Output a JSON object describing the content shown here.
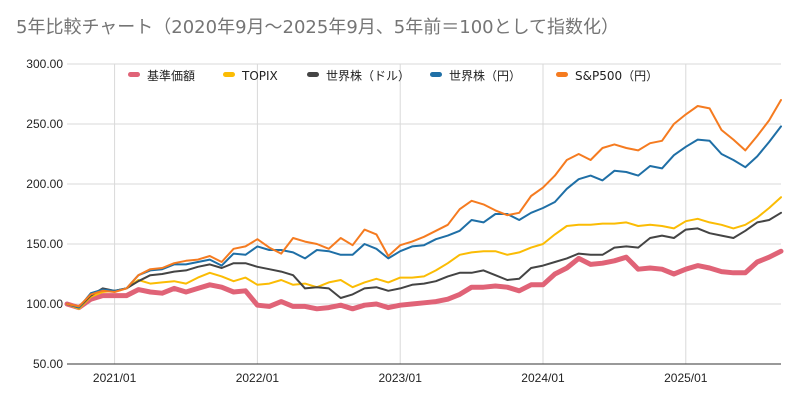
{
  "chart_data": {
    "type": "line",
    "title": "5年比較チャート（2020年9月〜2025年9月、5年前＝100として指数化）",
    "xlabel": "",
    "ylabel": "",
    "ylim": [
      50,
      300
    ],
    "yticks": [
      "50.00",
      "100.00",
      "150.00",
      "200.00",
      "250.00",
      "300.00"
    ],
    "xticks": [
      {
        "label": "2021/01",
        "index": 4
      },
      {
        "label": "2022/01",
        "index": 16
      },
      {
        "label": "2023/01",
        "index": 28
      },
      {
        "label": "2024/01",
        "index": 40
      },
      {
        "label": "2025/01",
        "index": 52
      }
    ],
    "x": [
      "2020/09",
      "2020/10",
      "2020/11",
      "2020/12",
      "2021/01",
      "2021/02",
      "2021/03",
      "2021/04",
      "2021/05",
      "2021/06",
      "2021/07",
      "2021/08",
      "2021/09",
      "2021/10",
      "2021/11",
      "2021/12",
      "2022/01",
      "2022/02",
      "2022/03",
      "2022/04",
      "2022/05",
      "2022/06",
      "2022/07",
      "2022/08",
      "2022/09",
      "2022/10",
      "2022/11",
      "2022/12",
      "2023/01",
      "2023/02",
      "2023/03",
      "2023/04",
      "2023/05",
      "2023/06",
      "2023/07",
      "2023/08",
      "2023/09",
      "2023/10",
      "2023/11",
      "2023/12",
      "2024/01",
      "2024/02",
      "2024/03",
      "2024/04",
      "2024/05",
      "2024/06",
      "2024/07",
      "2024/08",
      "2024/09",
      "2024/10",
      "2024/11",
      "2024/12",
      "2025/01",
      "2025/02",
      "2025/03",
      "2025/04",
      "2025/05",
      "2025/06",
      "2025/07",
      "2025/08",
      "2025/09"
    ],
    "legend_position": "top",
    "series": [
      {
        "name": "基準価額",
        "color": "#e06377",
        "width": 5,
        "values": [
          100,
          97,
          104,
          107,
          107,
          107,
          112,
          110,
          109,
          113,
          110,
          113,
          116,
          114,
          110,
          111,
          99,
          98,
          102,
          98,
          98,
          96,
          97,
          99,
          96,
          99,
          100,
          97,
          99,
          100,
          101,
          102,
          104,
          108,
          114,
          114,
          115,
          114,
          111,
          116,
          116,
          125,
          130,
          138,
          133,
          134,
          136,
          139,
          129,
          130,
          129,
          125,
          129,
          132,
          130,
          127,
          126,
          126,
          135,
          139,
          144
        ]
      },
      {
        "name": "TOPIX",
        "color": "#fbbc04",
        "width": 2,
        "values": [
          100,
          96,
          106,
          110,
          111,
          113,
          120,
          117,
          118,
          119,
          117,
          122,
          126,
          123,
          119,
          122,
          116,
          117,
          120,
          116,
          117,
          114,
          118,
          120,
          114,
          118,
          121,
          118,
          122,
          122,
          123,
          128,
          134,
          141,
          143,
          144,
          144,
          141,
          143,
          147,
          150,
          158,
          165,
          166,
          166,
          167,
          167,
          168,
          165,
          166,
          165,
          163,
          169,
          171,
          168,
          166,
          163,
          166,
          172,
          180,
          189
        ]
      },
      {
        "name": "世界株（ドル）",
        "color": "#444444",
        "width": 2,
        "values": [
          100,
          97,
          107,
          113,
          111,
          113,
          119,
          124,
          125,
          127,
          128,
          131,
          133,
          130,
          134,
          134,
          131,
          129,
          127,
          124,
          113,
          114,
          113,
          105,
          108,
          113,
          114,
          111,
          113,
          116,
          117,
          119,
          123,
          126,
          126,
          128,
          124,
          120,
          121,
          130,
          132,
          135,
          138,
          142,
          141,
          141,
          147,
          148,
          147,
          155,
          157,
          155,
          162,
          163,
          159,
          157,
          155,
          161,
          168,
          170,
          176
        ]
      },
      {
        "name": "世界株（円）",
        "color": "#1f6fa6",
        "width": 2,
        "values": [
          100,
          97,
          109,
          112,
          111,
          113,
          124,
          128,
          129,
          133,
          133,
          135,
          137,
          132,
          142,
          141,
          148,
          145,
          145,
          143,
          138,
          145,
          144,
          141,
          141,
          150,
          146,
          138,
          144,
          148,
          149,
          154,
          157,
          161,
          170,
          168,
          175,
          175,
          170,
          176,
          180,
          185,
          196,
          204,
          207,
          203,
          211,
          210,
          207,
          215,
          213,
          224,
          231,
          237,
          236,
          225,
          220,
          214,
          223,
          235,
          248
        ]
      },
      {
        "name": "S&P500（円）",
        "color": "#f57b20",
        "width": 2,
        "values": [
          100,
          98,
          108,
          111,
          110,
          113,
          124,
          129,
          130,
          134,
          136,
          137,
          140,
          135,
          146,
          148,
          154,
          147,
          142,
          155,
          152,
          150,
          146,
          155,
          149,
          162,
          158,
          140,
          149,
          152,
          156,
          161,
          166,
          179,
          186,
          183,
          178,
          174,
          176,
          190,
          197,
          207,
          220,
          225,
          220,
          230,
          233,
          230,
          228,
          234,
          236,
          250,
          258,
          265,
          263,
          245,
          237,
          228,
          240,
          253,
          270
        ]
      }
    ]
  }
}
